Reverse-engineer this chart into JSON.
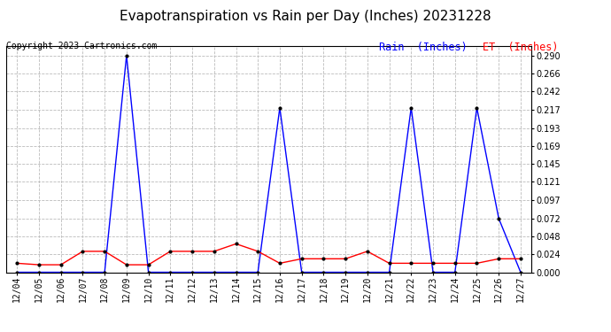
{
  "title": "Evapotranspiration vs Rain per Day (Inches) 20231228",
  "copyright": "Copyright 2023 Cartronics.com",
  "legend_rain": "Rain  (Inches)",
  "legend_et": "ET  (Inches)",
  "dates": [
    "12/04",
    "12/05",
    "12/06",
    "12/07",
    "12/08",
    "12/09",
    "12/10",
    "12/11",
    "12/12",
    "12/13",
    "12/14",
    "12/15",
    "12/16",
    "12/17",
    "12/18",
    "12/19",
    "12/20",
    "12/21",
    "12/22",
    "12/23",
    "12/24",
    "12/25",
    "12/26",
    "12/27"
  ],
  "rain": [
    0.0,
    0.0,
    0.0,
    0.0,
    0.0,
    0.29,
    0.0,
    0.0,
    0.0,
    0.0,
    0.0,
    0.0,
    0.22,
    0.0,
    0.0,
    0.0,
    0.0,
    0.0,
    0.22,
    0.0,
    0.0,
    0.22,
    0.072,
    0.0
  ],
  "et": [
    0.012,
    0.01,
    0.01,
    0.028,
    0.028,
    0.01,
    0.01,
    0.028,
    0.028,
    0.028,
    0.038,
    0.028,
    0.012,
    0.018,
    0.018,
    0.018,
    0.028,
    0.012,
    0.012,
    0.012,
    0.012,
    0.012,
    0.018,
    0.018
  ],
  "ylim": [
    0.0,
    0.302
  ],
  "yticks": [
    0.0,
    0.024,
    0.048,
    0.072,
    0.097,
    0.121,
    0.145,
    0.169,
    0.193,
    0.217,
    0.242,
    0.266,
    0.29
  ],
  "rain_color": "#0000ff",
  "et_color": "#ff0000",
  "background_color": "#ffffff",
  "grid_color": "#bbbbbb",
  "title_fontsize": 11,
  "tick_fontsize": 7,
  "copyright_fontsize": 7,
  "legend_fontsize": 8.5
}
